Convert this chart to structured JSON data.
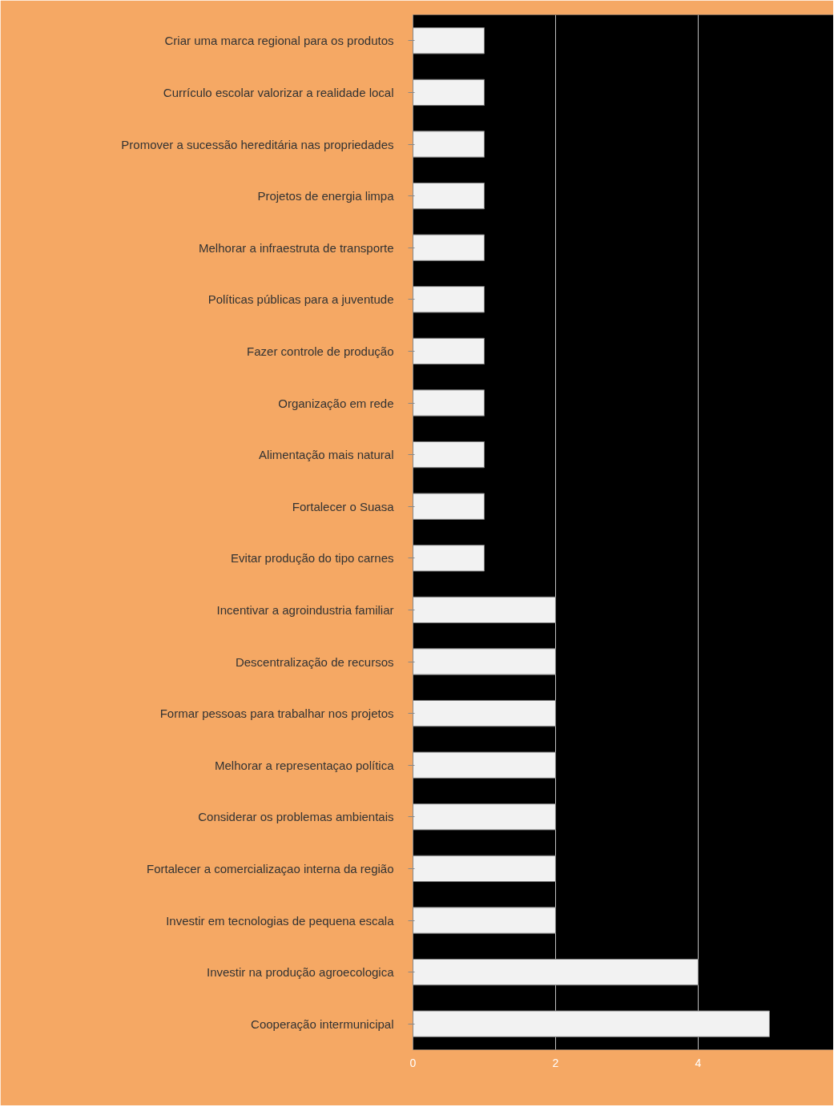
{
  "chart_data": {
    "type": "bar",
    "orientation": "horizontal",
    "categories": [
      "Criar uma marca regional para os produtos",
      "Currículo escolar valorizar a realidade local",
      "Promover a sucessão hereditária nas propriedades",
      "Projetos de energia limpa",
      "Melhorar a infraestruta de transporte",
      "Políticas públicas para a juventude",
      "Fazer controle de produção",
      "Organização em rede",
      "Alimentação mais natural",
      "Fortalecer o Suasa",
      "Evitar produção do tipo carnes",
      "Incentivar a agroindustria familiar",
      "Descentralização de recursos",
      "Formar pessoas para trabalhar nos projetos",
      "Melhorar a representaçao política",
      "Considerar os problemas ambientais",
      "Fortalecer a comercializaçao interna da região",
      "Investir em tecnologias de pequena escala",
      "Investir na produção agroecologica",
      "Cooperação intermunicipal"
    ],
    "values": [
      1,
      1,
      1,
      1,
      1,
      1,
      1,
      1,
      1,
      1,
      1,
      2,
      2,
      2,
      2,
      2,
      2,
      2,
      4,
      5
    ],
    "color": "#f2f2f2",
    "xlim": [
      0,
      5.9
    ],
    "xticks": [
      0,
      2,
      4
    ],
    "grid": "x"
  }
}
